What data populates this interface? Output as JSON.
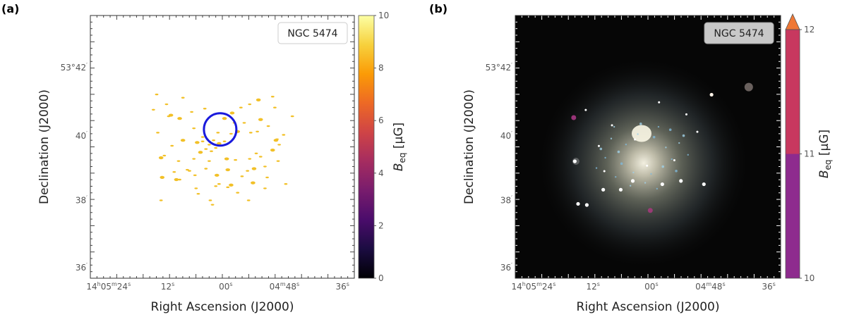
{
  "chart_data": [
    {
      "type": "heatmap",
      "panel_label": "(a)",
      "object_label": "NGC 5474",
      "xlabel": "Right Ascension (J2000)",
      "ylabel": "Declination (J2000)",
      "x_ticks": [
        {
          "pre": "14",
          "sup1": "h",
          "mid": "05",
          "sup2": "m",
          "post": "24",
          "sup3": "s"
        },
        {
          "pre": "12",
          "sup1": "s"
        },
        {
          "pre": "00",
          "sup1": "s"
        },
        {
          "pre": "04",
          "sup1": "m",
          "mid": "48",
          "sup2": "s"
        },
        {
          "pre": "36",
          "sup1": "s"
        }
      ],
      "y_ticks": [
        {
          "pre": "53°42",
          "sup1": "′"
        },
        {
          "pre": "40",
          "sup1": "′"
        },
        {
          "pre": "38",
          "sup1": "′"
        },
        {
          "pre": "36",
          "sup1": "′"
        }
      ],
      "colorbar": {
        "label_main": "B",
        "label_sub": "eq",
        "label_unit": " [μG]",
        "range": [
          0,
          10
        ],
        "ticks": [
          "0",
          "2",
          "4",
          "6",
          "8",
          "10"
        ],
        "colors": [
          "#000004",
          "#1b0c41",
          "#4a0c6b",
          "#781c6d",
          "#a52c60",
          "#cf4446",
          "#ed6925",
          "#fb9b06",
          "#f7d13d",
          "#fcffa4"
        ]
      },
      "circle_color": "#1a1adc",
      "emission_color": "#f2c027",
      "emission_points": [
        [
          -2.3,
          -0.4
        ],
        [
          -1.8,
          -0.5
        ],
        [
          -1.2,
          -0.2
        ],
        [
          -0.8,
          -0.6
        ],
        [
          -0.3,
          -0.3
        ],
        [
          0.2,
          -0.5
        ],
        [
          -0.6,
          0.1
        ],
        [
          -1.5,
          0.2
        ],
        [
          -2.0,
          0.5
        ],
        [
          -1.0,
          0.4
        ],
        [
          3.2,
          -1.4
        ],
        [
          2.6,
          -1.3
        ],
        [
          1.4,
          -1.4
        ],
        [
          0.8,
          -1.2
        ],
        [
          -0.4,
          -1.3
        ],
        [
          -1.8,
          -0.9
        ],
        [
          -3.6,
          -0.6
        ],
        [
          -4.6,
          -0.1
        ],
        [
          -5.3,
          0.8
        ],
        [
          4.2,
          -1.9
        ],
        [
          -5.6,
          1.0
        ],
        [
          -4.0,
          1.3
        ],
        [
          -2.6,
          1.1
        ],
        [
          -1.2,
          1.3
        ],
        [
          0.4,
          1.1
        ],
        [
          1.2,
          1.2
        ],
        [
          2.5,
          1.1
        ],
        [
          3.5,
          0.9
        ],
        [
          4.6,
          0.3
        ],
        [
          5.2,
          -0.2
        ],
        [
          -4.4,
          2.3
        ],
        [
          -1.5,
          2.0
        ],
        [
          0.5,
          2.1
        ],
        [
          2.3,
          2.2
        ],
        [
          3.9,
          1.8
        ],
        [
          5.1,
          1.3
        ],
        [
          -5.5,
          2.8
        ],
        [
          -2.5,
          2.6
        ],
        [
          1.8,
          2.7
        ],
        [
          4.1,
          2.8
        ],
        [
          -4.2,
          3.0
        ],
        [
          -3.9,
          3.0
        ],
        [
          -0.3,
          3.4
        ],
        [
          -0.6,
          3.6
        ],
        [
          0.8,
          3.5
        ],
        [
          0.5,
          3.7
        ],
        [
          -2.2,
          4.3
        ],
        [
          1.4,
          4.2
        ],
        [
          4.9,
          -0.6
        ],
        [
          5.0,
          -0.7
        ],
        [
          -3.2,
          2.1
        ],
        [
          -3.0,
          2.2
        ],
        [
          2.9,
          2.0
        ],
        [
          -5.9,
          -1.3
        ],
        [
          5.6,
          -1.1
        ],
        [
          -4.9,
          -2.8
        ],
        [
          -4.7,
          -2.9
        ],
        [
          -2.8,
          -3.2
        ],
        [
          1.7,
          -3.6
        ],
        [
          2.5,
          -3.9
        ],
        [
          3.3,
          -4.3
        ],
        [
          -5.6,
          4.9
        ],
        [
          -3.6,
          -4.5
        ],
        [
          4.6,
          -4.6
        ],
        [
          0.9,
          -3.1
        ],
        [
          3.9,
          3.8
        ],
        [
          -1.1,
          4.9
        ],
        [
          5.8,
          3.4
        ],
        [
          2.8,
          3.3
        ],
        [
          -6.0,
          -4.8
        ],
        [
          -6.3,
          -3.4
        ],
        [
          -2.4,
          3.8
        ],
        [
          3.5,
          -2.5
        ],
        [
          6.4,
          -2.8
        ],
        [
          -0.9,
          5.3
        ],
        [
          -5.1,
          -3.9
        ],
        [
          0.2,
          -2.6
        ],
        [
          -1.6,
          -3.5
        ],
        [
          4.8,
          -3.6
        ],
        [
          2.4,
          4.9
        ],
        [
          -3.9,
          -2.6
        ],
        [
          -2.6,
          -1.7
        ],
        [
          1.1,
          -2.2
        ],
        [
          2.0,
          -2.2
        ],
        [
          -0.5,
          2.6
        ],
        [
          3.1,
          0.6
        ]
      ]
    },
    {
      "type": "heatmap",
      "panel_label": "(b)",
      "object_label": "NGC 5474",
      "xlabel": "Right Ascension (J2000)",
      "ylabel": "Declination (J2000)",
      "x_ticks": [
        {
          "pre": "14",
          "sup1": "h",
          "mid": "05",
          "sup2": "m",
          "post": "24",
          "sup3": "s"
        },
        {
          "pre": "12",
          "sup1": "s"
        },
        {
          "pre": "00",
          "sup1": "s"
        },
        {
          "pre": "04",
          "sup1": "m",
          "mid": "48",
          "sup2": "s"
        },
        {
          "pre": "36",
          "sup1": "s"
        }
      ],
      "y_ticks": [
        {
          "pre": "53°42",
          "sup1": "′"
        },
        {
          "pre": "40",
          "sup1": "′"
        },
        {
          "pre": "38",
          "sup1": "′"
        },
        {
          "pre": "36",
          "sup1": "′"
        }
      ],
      "colorbar": {
        "label_main": "B",
        "label_sub": "eq",
        "label_unit": " [μG]",
        "range": [
          10,
          12
        ],
        "ticks": [
          "10",
          "11",
          "12"
        ],
        "bands": [
          {
            "from": 10,
            "to": 11,
            "color": "#8e2b8e"
          },
          {
            "from": 11,
            "to": 12,
            "color": "#c8385f"
          }
        ],
        "extend_color": "#ef7835"
      },
      "stars": [
        [
          -6.3,
          1.0
        ],
        [
          -6.0,
          4.9
        ],
        [
          -5.2,
          5.0
        ],
        [
          -3.7,
          3.6
        ],
        [
          -2.1,
          3.6
        ],
        [
          -1.0,
          2.8
        ],
        [
          1.7,
          3.1
        ],
        [
          3.4,
          2.8
        ],
        [
          5.5,
          3.1
        ],
        [
          6.2,
          -5.1
        ],
        [
          -2.9,
          -2.3
        ],
        [
          2.8,
          0.9
        ],
        [
          -4.1,
          -0.4
        ],
        [
          0.3,
          1.4
        ],
        [
          4.9,
          -1.7
        ],
        [
          -0.8,
          -1.0
        ],
        [
          1.4,
          -4.4
        ],
        [
          -3.6,
          1.9
        ],
        [
          3.9,
          -3.3
        ],
        [
          -5.3,
          -3.7
        ]
      ],
      "knots": [
        [
          -1.7,
          0.1
        ],
        [
          -1.2,
          -0.4
        ],
        [
          -0.4,
          -1.1
        ],
        [
          0.7,
          -0.9
        ],
        [
          1.5,
          -0.2
        ],
        [
          1.9,
          0.6
        ],
        [
          1.3,
          1.1
        ],
        [
          0.5,
          1.6
        ],
        [
          -0.7,
          1.5
        ],
        [
          -1.5,
          0.9
        ],
        [
          -2.2,
          -0.8
        ],
        [
          -2.6,
          0.5
        ],
        [
          -0.2,
          -1.8
        ],
        [
          1.0,
          -1.6
        ],
        [
          2.4,
          -0.5
        ],
        [
          2.2,
          1.4
        ],
        [
          0.1,
          2.2
        ],
        [
          -1.9,
          1.8
        ],
        [
          -2.9,
          -0.1
        ],
        [
          3.0,
          0.3
        ],
        [
          -2.0,
          -1.6
        ],
        [
          1.8,
          -1.4
        ],
        [
          -0.9,
          2.4
        ],
        [
          0.9,
          2.6
        ],
        [
          2.7,
          -1.0
        ],
        [
          -3.2,
          1.2
        ]
      ]
    }
  ]
}
